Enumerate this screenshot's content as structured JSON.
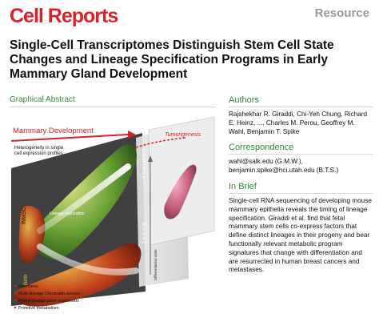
{
  "journal": "Cell Reports",
  "article_type": "Resource",
  "title": "Single-Cell Transcriptomes Distinguish Stem Cell State Changes and Lineage Specification Programs in Early Mammary Gland Development",
  "graphical_abstract": {
    "label": "Graphical Abstract",
    "mammary_label": "Mammary Development",
    "heterogeneity_label": "Heterogeneity in single cell expression profiles",
    "tumorigenesis_label": "Tumorigenesis",
    "fmasc_label": "fMaSC",
    "luminal_label": "LUMINAL",
    "basal_label": "BASAL",
    "lineage_label": "Lineage exploration",
    "birth_label": "Birth",
    "differentiation_label": "Differentiation state",
    "legend": [
      "Stemness",
      "Multi-lineage Chromatin access",
      "Mixed-lineage gene expression",
      "Primitive metabolism"
    ]
  },
  "authors": {
    "heading": "Authors",
    "text": "Rajshekhar R. Giraddi, Chi-Yeh Chung, Richard E. Heinz, ..., Charles M. Perou, Geoffrey M. Wahl, Benjamin T. Spike"
  },
  "correspondence": {
    "heading": "Correspondence",
    "line1": "wahl@salk.edu (G.M.W.),",
    "line2": "benjamin.spike@hci.utah.edu (B.T.S.)"
  },
  "in_brief": {
    "heading": "In Brief",
    "text": "Single-cell RNA sequencing of developing mouse mammary epithelia reveals the timing of lineage specification. Giraddi et al. find that fetal mammary stem cells co-express factors that define distinct lineages in their progeny and bear functionally relevant metabolic program signatures that change with differentiation and are resurrected in human breast cancers and metastases."
  },
  "colors": {
    "brand_red": "#d8232a",
    "section_green": "#2f8a3c",
    "resource_gray": "#9a9a9a"
  }
}
